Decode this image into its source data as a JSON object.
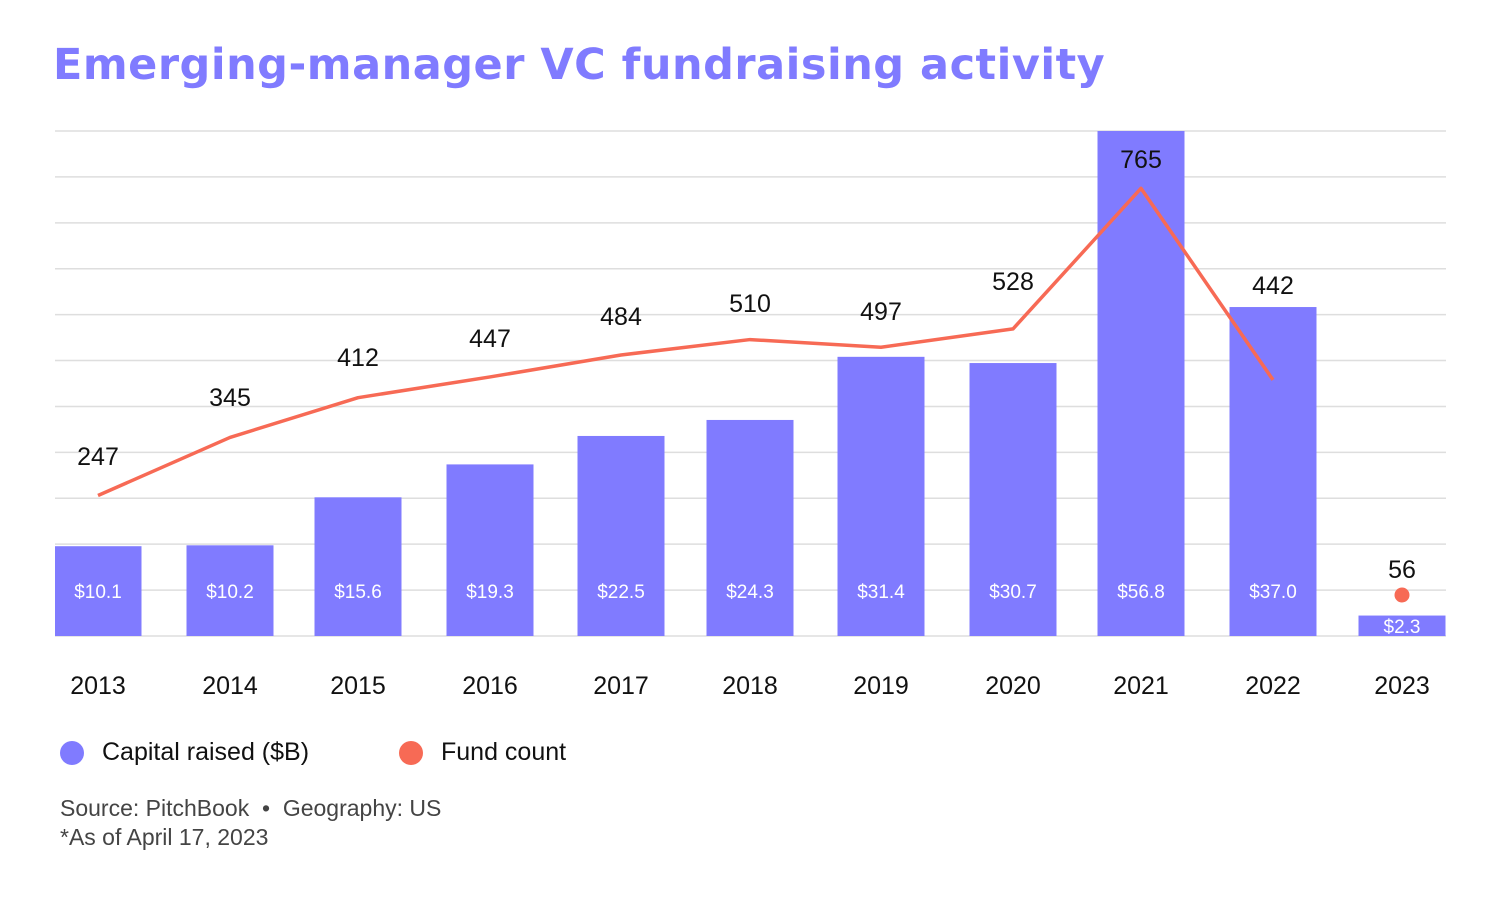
{
  "chart_data": {
    "type": "bar+line",
    "title": "Emerging-manager VC fundraising activity",
    "categories": [
      "2013",
      "2014",
      "2015",
      "2016",
      "2017",
      "2018",
      "2019",
      "2020",
      "2021",
      "2022",
      "2023"
    ],
    "series": [
      {
        "name": "Capital raised ($B)",
        "type": "bar",
        "color": "#807BFF",
        "values": [
          10.1,
          10.2,
          15.6,
          19.3,
          22.5,
          24.3,
          31.4,
          30.7,
          56.8,
          37.0,
          2.3
        ],
        "labels": [
          "$10.1",
          "$10.2",
          "$15.6",
          "$19.3",
          "$22.5",
          "$24.3",
          "$31.4",
          "$30.7",
          "$56.8",
          "$37.0",
          "$2.3"
        ]
      },
      {
        "name": "Fund count",
        "type": "line",
        "color": "#F76A55",
        "values": [
          247,
          345,
          412,
          447,
          484,
          510,
          497,
          528,
          765,
          442,
          56
        ]
      }
    ],
    "grid": true,
    "legend_position": "bottom-left"
  },
  "footnotes": {
    "source": "Source: PitchBook  •  Geography: US",
    "asof": "*As of April 17, 2023"
  }
}
